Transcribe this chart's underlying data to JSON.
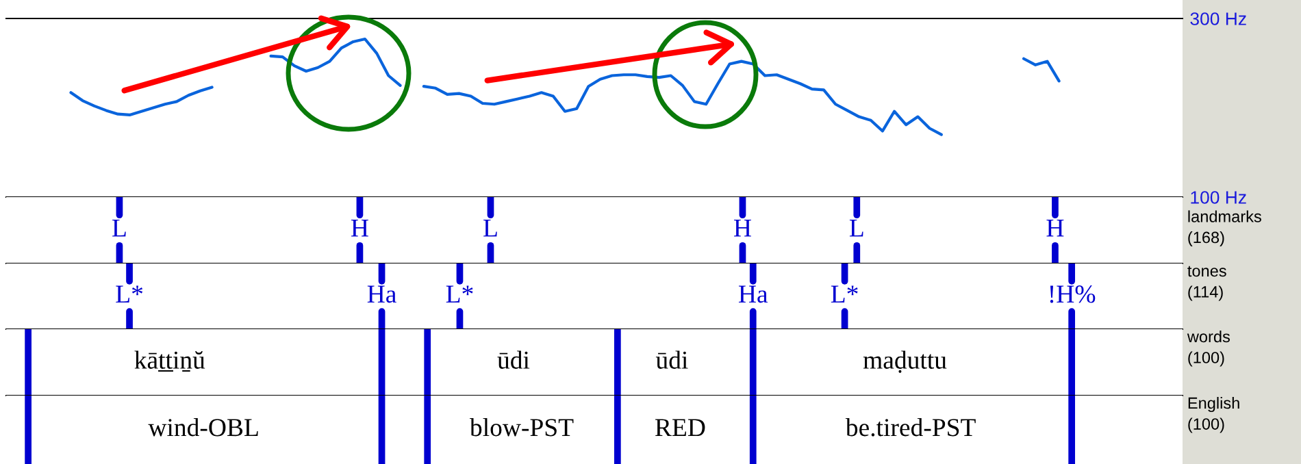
{
  "chart_data": [
    {
      "type": "line",
      "categories": [
        null,
        null,
        null,
        null,
        null,
        null,
        null,
        null,
        null,
        null,
        null,
        null,
        null,
        null,
        null,
        null,
        null,
        null,
        null,
        null,
        null,
        null,
        null,
        null,
        null,
        null,
        null,
        null,
        null,
        null,
        null,
        null,
        null,
        null,
        null,
        null,
        null,
        null,
        null,
        null,
        null,
        null,
        null,
        null,
        null,
        null,
        null,
        null,
        null,
        null,
        null,
        null,
        null,
        null,
        null,
        null,
        null,
        null,
        null,
        null,
        null,
        null,
        null,
        null,
        null,
        null,
        null,
        null,
        null,
        null,
        null,
        null,
        null,
        null,
        null,
        null,
        null,
        null,
        null,
        null,
        null,
        null,
        null,
        null,
        null,
        null,
        null,
        null,
        null,
        null,
        null,
        null,
        null,
        null,
        null,
        null,
        null,
        null,
        null,
        null
      ],
      "ylim": [
        100,
        300
      ],
      "yticks": [
        {
          "value": 300,
          "label": "300 Hz"
        },
        {
          "value": 100,
          "label": "100 Hz"
        }
      ],
      "tick_labels": "y",
      "series": [
        {
          "color": "#0a64dc",
          "values": [
            null,
            null,
            null,
            null,
            null,
            217,
            208,
            202,
            197,
            193,
            192,
            196,
            200,
            204,
            207,
            214,
            219,
            223,
            null,
            null,
            null,
            null,
            258,
            257,
            247,
            241,
            245,
            252,
            267,
            274,
            277,
            261,
            236,
            225,
            null,
            224,
            222,
            215,
            216,
            213,
            205,
            204,
            207,
            210,
            213,
            217,
            213,
            196,
            199,
            224,
            232,
            236,
            237,
            237,
            235,
            234,
            236,
            225,
            207,
            204,
            227,
            249,
            252,
            249,
            236,
            237,
            232,
            227,
            221,
            220,
            204,
            197,
            190,
            186,
            174,
            196,
            181,
            190,
            177,
            170,
            null,
            null,
            null,
            null,
            null,
            null,
            255,
            248,
            252,
            230,
            null,
            null,
            null,
            null,
            null,
            null,
            null,
            null,
            null,
            null
          ]
        }
      ]
    },
    {
      "type": "other",
      "title": "landmarks (168)",
      "annotations": [
        "L",
        "H",
        "L",
        "H",
        "L",
        "H"
      ]
    },
    {
      "type": "other",
      "title": "tones (114)",
      "annotations": [
        "L*",
        "Ha",
        "L*",
        "Ha",
        "L*",
        "!H%"
      ]
    },
    {
      "type": "other",
      "title": "words (100)",
      "annotations": [
        "kāṯṯiṉŭ",
        "ūdi",
        "ūdi",
        "maḍuttu"
      ]
    },
    {
      "type": "other",
      "title": "English (100)",
      "annotations": [
        "wind-OBL",
        "blow-PST",
        "RED",
        "be.tired-PST"
      ]
    }
  ]
}
